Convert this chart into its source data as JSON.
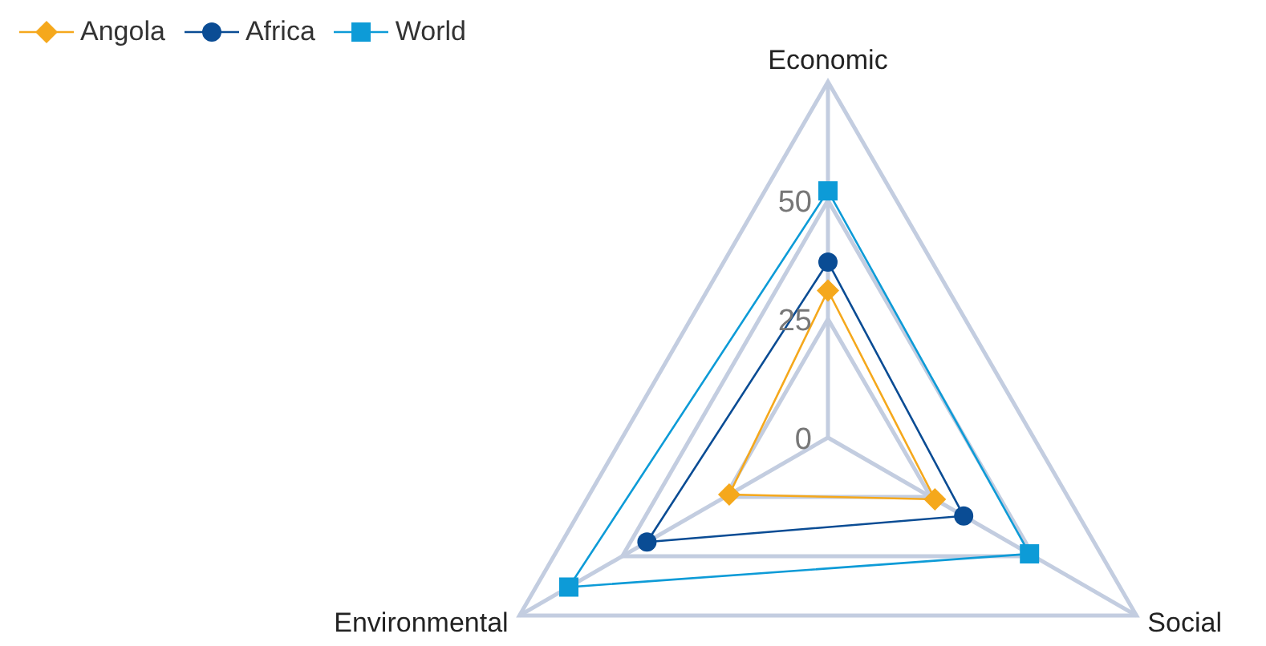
{
  "chart_data": {
    "type": "radar",
    "categories": [
      "Economic",
      "Social",
      "Environmental"
    ],
    "ylim": [
      0,
      75
    ],
    "yticks": [
      0,
      25,
      50
    ],
    "grid": true,
    "legend": "top left",
    "series": [
      {
        "name": "Angola",
        "color": "#f5a81c",
        "marker": "diamond",
        "values": [
          31,
          26,
          24
        ]
      },
      {
        "name": "Africa",
        "color": "#0a4c94",
        "marker": "circle",
        "values": [
          37,
          33,
          44
        ]
      },
      {
        "name": "World",
        "color": "#0d9bd7",
        "marker": "square",
        "values": [
          52,
          49,
          63
        ]
      }
    ]
  }
}
